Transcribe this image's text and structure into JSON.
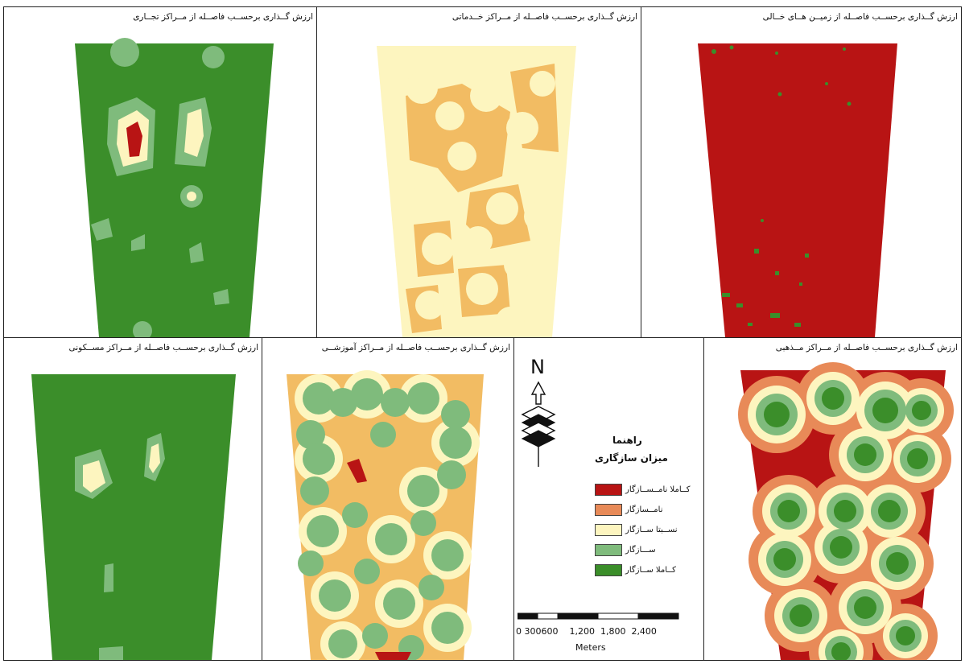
{
  "colors": {
    "very_unsuitable": "#b81414",
    "unsuitable": "#e88a58",
    "relatively_suitable": "#fdf5bf",
    "suitable": "#7fbb7c",
    "very_suitable": "#3b8e2a",
    "orange_mid": "#f2bc63"
  },
  "panels": {
    "commercial": {
      "title": "ارزش گــذاری برحســب فاصــله از مــراکز تجــاری"
    },
    "service": {
      "title": "ارزش گــذاری برحســب فاصــله از مــراکز خــدماتی"
    },
    "vacant": {
      "title": "ارزش گــذاری برحســب فاصــله از زمیــن هــای خــالی"
    },
    "residential": {
      "title": "ارزش گــذاری برحســب فاصــله از مــراکز مســکونی"
    },
    "educational": {
      "title": "ارزش گــذاری برحســب فاصــله از مــراکز آموزشــی"
    },
    "religious": {
      "title": "ارزش گــذاری برحســب فاصــله از مــراکز مــذهبی"
    }
  },
  "legend": {
    "north_label": "N",
    "title": "راهنما",
    "subtitle": "میزان سازگاری",
    "items": [
      {
        "label": "کــاملا نامــســازگار",
        "color": "#b81414"
      },
      {
        "label": "نامــسازگار",
        "color": "#e88a58"
      },
      {
        "label": "نســبتا ســازگار",
        "color": "#fdf5bf"
      },
      {
        "label": "ســـازگار",
        "color": "#7fbb7c"
      },
      {
        "label": "کــاملا ســازگار",
        "color": "#3b8e2a"
      }
    ],
    "scale_ticks": "0 300600    1,200  1,800  2,400",
    "scale_unit": "Meters"
  }
}
